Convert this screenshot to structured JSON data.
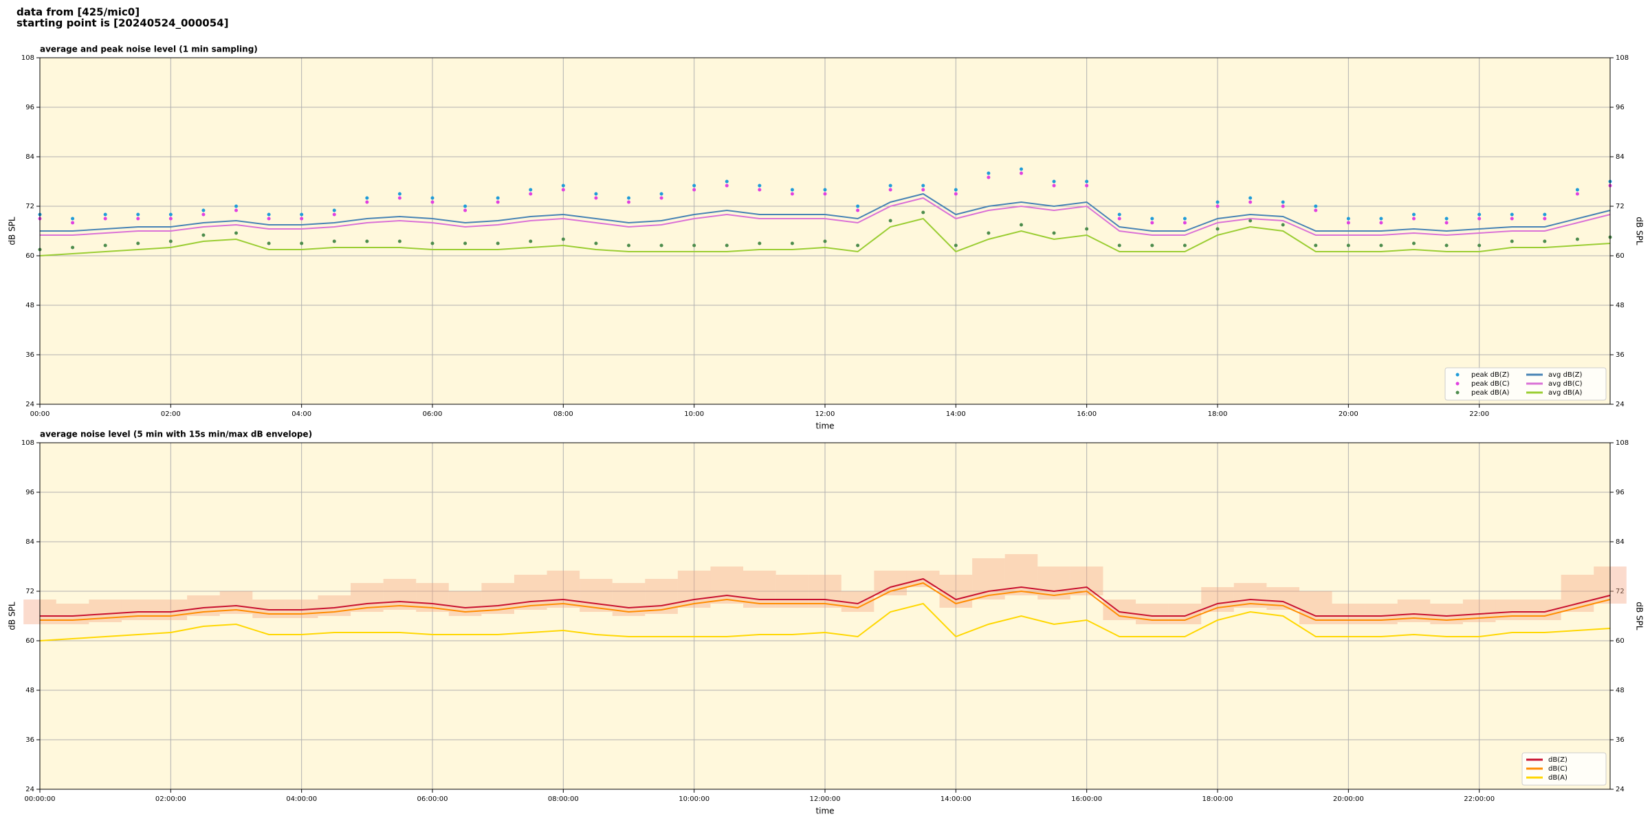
{
  "header": {
    "source": "data from [425/mic0]",
    "start": "starting point is [20240524_000054]"
  },
  "chart_data": [
    {
      "type": "line",
      "title": "average and peak noise level (1 min sampling)",
      "xlabel": "time",
      "ylabel": "dB SPL",
      "x": [
        0,
        0.5,
        1,
        1.5,
        2,
        2.5,
        3,
        3.5,
        4,
        4.5,
        5,
        5.5,
        6,
        6.5,
        7,
        7.5,
        8,
        8.5,
        9,
        9.5,
        10,
        10.5,
        11,
        11.5,
        12,
        12.5,
        13,
        13.5,
        14,
        14.5,
        15,
        15.5,
        16,
        16.5,
        17,
        17.5,
        18,
        18.5,
        19,
        19.5,
        20,
        20.5,
        21,
        21.5,
        22,
        22.5,
        23,
        23.5,
        24
      ],
      "xlim": [
        0,
        24
      ],
      "xticks": [
        {
          "value": 0,
          "label": "00:00"
        },
        {
          "value": 2,
          "label": "02:00"
        },
        {
          "value": 4,
          "label": "04:00"
        },
        {
          "value": 6,
          "label": "06:00"
        },
        {
          "value": 8,
          "label": "08:00"
        },
        {
          "value": 10,
          "label": "10:00"
        },
        {
          "value": 12,
          "label": "12:00"
        },
        {
          "value": 14,
          "label": "14:00"
        },
        {
          "value": 16,
          "label": "16:00"
        },
        {
          "value": 18,
          "label": "18:00"
        },
        {
          "value": 20,
          "label": "20:00"
        },
        {
          "value": 22,
          "label": "22:00"
        }
      ],
      "ylim": [
        24,
        108
      ],
      "yticks": [
        24,
        36,
        48,
        60,
        72,
        84,
        96,
        108
      ],
      "grid": true,
      "legend": "lower right",
      "background": "#fff8dc",
      "series": [
        {
          "name": "peak dB(Z)",
          "type": "scatter",
          "color": "#1f9bd8",
          "values": [
            70,
            69,
            70,
            70,
            70,
            71,
            72,
            70,
            70,
            71,
            74,
            75,
            74,
            72,
            74,
            76,
            77,
            75,
            74,
            75,
            77,
            78,
            77,
            76,
            76,
            72,
            77,
            77,
            76,
            80,
            81,
            78,
            78,
            70,
            69,
            69,
            73,
            74,
            73,
            72,
            69,
            69,
            70,
            69,
            70,
            70,
            70,
            76,
            78
          ]
        },
        {
          "name": "peak dB(C)",
          "type": "scatter",
          "color": "#e040e0",
          "values": [
            69,
            68,
            69,
            69,
            69,
            70,
            71,
            69,
            69,
            70,
            73,
            74,
            73,
            71,
            73,
            75,
            76,
            74,
            73,
            74,
            76,
            77,
            76,
            75,
            75,
            71,
            76,
            76,
            75,
            79,
            80,
            77,
            77,
            69,
            68,
            68,
            72,
            73,
            72,
            71,
            68,
            68,
            69,
            68,
            69,
            69,
            69,
            75,
            77
          ]
        },
        {
          "name": "peak dB(A)",
          "type": "scatter",
          "color": "#4c8c4c",
          "values": [
            61.5,
            62,
            62.5,
            63,
            63.5,
            65,
            65.5,
            63,
            63,
            63.5,
            63.5,
            63.5,
            63,
            63,
            63,
            63.5,
            64,
            63,
            62.5,
            62.5,
            62.5,
            62.5,
            63,
            63,
            63.5,
            62.5,
            68.5,
            70.5,
            62.5,
            65.5,
            67.5,
            65.5,
            66.5,
            62.5,
            62.5,
            62.5,
            66.5,
            68.5,
            67.5,
            62.5,
            62.5,
            62.5,
            63,
            62.5,
            62.5,
            63.5,
            63.5,
            64,
            64.5
          ]
        },
        {
          "name": "avg dB(Z)",
          "type": "line",
          "color": "#4682b4",
          "values": [
            66,
            66,
            66.5,
            67,
            67,
            68,
            68.5,
            67.5,
            67.5,
            68,
            69,
            69.5,
            69,
            68,
            68.5,
            69.5,
            70,
            69,
            68,
            68.5,
            70,
            71,
            70,
            70,
            70,
            69,
            73,
            75,
            70,
            72,
            73,
            72,
            73,
            67,
            66,
            66,
            69,
            70,
            69.5,
            66,
            66,
            66,
            66.5,
            66,
            66.5,
            67,
            67,
            69,
            71
          ]
        },
        {
          "name": "avg dB(C)",
          "type": "line",
          "color": "#da70d6",
          "values": [
            65,
            65,
            65.5,
            66,
            66,
            67,
            67.5,
            66.5,
            66.5,
            67,
            68,
            68.5,
            68,
            67,
            67.5,
            68.5,
            69,
            68,
            67,
            67.5,
            69,
            70,
            69,
            69,
            69,
            68,
            72,
            74,
            69,
            71,
            72,
            71,
            72,
            66,
            65,
            65,
            68,
            69,
            68.5,
            65,
            65,
            65,
            65.5,
            65,
            65.5,
            66,
            66,
            68,
            70
          ]
        },
        {
          "name": "avg dB(A)",
          "type": "line",
          "color": "#9acd32",
          "values": [
            60,
            60.5,
            61,
            61.5,
            62,
            63.5,
            64,
            61.5,
            61.5,
            62,
            62,
            62,
            61.5,
            61.5,
            61.5,
            62,
            62.5,
            61.5,
            61,
            61,
            61,
            61,
            61.5,
            61.5,
            62,
            61,
            67,
            69,
            61,
            64,
            66,
            64,
            65,
            61,
            61,
            61,
            65,
            67,
            66,
            61,
            61,
            61,
            61.5,
            61,
            61,
            62,
            62,
            62.5,
            63
          ]
        }
      ]
    },
    {
      "type": "line",
      "title": "average noise level (5 min with 15s min/max dB envelope)",
      "xlabel": "time",
      "ylabel": "dB SPL",
      "x": [
        0,
        0.5,
        1,
        1.5,
        2,
        2.5,
        3,
        3.5,
        4,
        4.5,
        5,
        5.5,
        6,
        6.5,
        7,
        7.5,
        8,
        8.5,
        9,
        9.5,
        10,
        10.5,
        11,
        11.5,
        12,
        12.5,
        13,
        13.5,
        14,
        14.5,
        15,
        15.5,
        16,
        16.5,
        17,
        17.5,
        18,
        18.5,
        19,
        19.5,
        20,
        20.5,
        21,
        21.5,
        22,
        22.5,
        23,
        23.5,
        24
      ],
      "xlim": [
        0,
        24
      ],
      "xticks": [
        {
          "value": 0,
          "label": "00:00:00"
        },
        {
          "value": 2,
          "label": "02:00:00"
        },
        {
          "value": 4,
          "label": "04:00:00"
        },
        {
          "value": 6,
          "label": "06:00:00"
        },
        {
          "value": 8,
          "label": "08:00:00"
        },
        {
          "value": 10,
          "label": "10:00:00"
        },
        {
          "value": 12,
          "label": "12:00:00"
        },
        {
          "value": 14,
          "label": "14:00:00"
        },
        {
          "value": 16,
          "label": "16:00:00"
        },
        {
          "value": 18,
          "label": "18:00:00"
        },
        {
          "value": 20,
          "label": "20:00:00"
        },
        {
          "value": 22,
          "label": "22:00:00"
        }
      ],
      "ylim": [
        24,
        108
      ],
      "yticks": [
        24,
        36,
        48,
        60,
        72,
        84,
        96,
        108
      ],
      "grid": true,
      "legend": "lower right",
      "background": "#fff8dc",
      "envelope": {
        "color": "#f4a582",
        "min": [
          64,
          64,
          64.5,
          65,
          65,
          66,
          66.5,
          65.5,
          65.5,
          66,
          67,
          67.5,
          67,
          66,
          66.5,
          67.5,
          68,
          67,
          66,
          66.5,
          68,
          69,
          68,
          68,
          68,
          67,
          71,
          73,
          68,
          70,
          71,
          70,
          71,
          65,
          64,
          64,
          67,
          68,
          67.5,
          64,
          64,
          64,
          64.5,
          64,
          64.5,
          65,
          65,
          67,
          69
        ],
        "max": [
          70,
          69,
          70,
          70,
          70,
          71,
          72,
          70,
          70,
          71,
          74,
          75,
          74,
          72,
          74,
          76,
          77,
          75,
          74,
          75,
          77,
          78,
          77,
          76,
          76,
          72,
          77,
          77,
          76,
          80,
          81,
          78,
          78,
          70,
          69,
          69,
          73,
          74,
          73,
          72,
          69,
          69,
          70,
          69,
          70,
          70,
          70,
          76,
          78
        ]
      },
      "series": [
        {
          "name": "dB(Z)",
          "type": "line",
          "color": "#c8102e",
          "values": [
            66,
            66,
            66.5,
            67,
            67,
            68,
            68.5,
            67.5,
            67.5,
            68,
            69,
            69.5,
            69,
            68,
            68.5,
            69.5,
            70,
            69,
            68,
            68.5,
            70,
            71,
            70,
            70,
            70,
            69,
            73,
            75,
            70,
            72,
            73,
            72,
            73,
            67,
            66,
            66,
            69,
            70,
            69.5,
            66,
            66,
            66,
            66.5,
            66,
            66.5,
            67,
            67,
            69,
            71
          ]
        },
        {
          "name": "dB(C)",
          "type": "line",
          "color": "#ff8c00",
          "values": [
            65,
            65,
            65.5,
            66,
            66,
            67,
            67.5,
            66.5,
            66.5,
            67,
            68,
            68.5,
            68,
            67,
            67.5,
            68.5,
            69,
            68,
            67,
            67.5,
            69,
            70,
            69,
            69,
            69,
            68,
            72,
            74,
            69,
            71,
            72,
            71,
            72,
            66,
            65,
            65,
            68,
            69,
            68.5,
            65,
            65,
            65,
            65.5,
            65,
            65.5,
            66,
            66,
            68,
            70
          ]
        },
        {
          "name": "dB(A)",
          "type": "line",
          "color": "#ffd700",
          "values": [
            60,
            60.5,
            61,
            61.5,
            62,
            63.5,
            64,
            61.5,
            61.5,
            62,
            62,
            62,
            61.5,
            61.5,
            61.5,
            62,
            62.5,
            61.5,
            61,
            61,
            61,
            61,
            61.5,
            61.5,
            62,
            61,
            67,
            69,
            61,
            64,
            66,
            64,
            65,
            61,
            61,
            61,
            65,
            67,
            66,
            61,
            61,
            61,
            61.5,
            61,
            61,
            62,
            62,
            62.5,
            63
          ]
        }
      ]
    }
  ]
}
